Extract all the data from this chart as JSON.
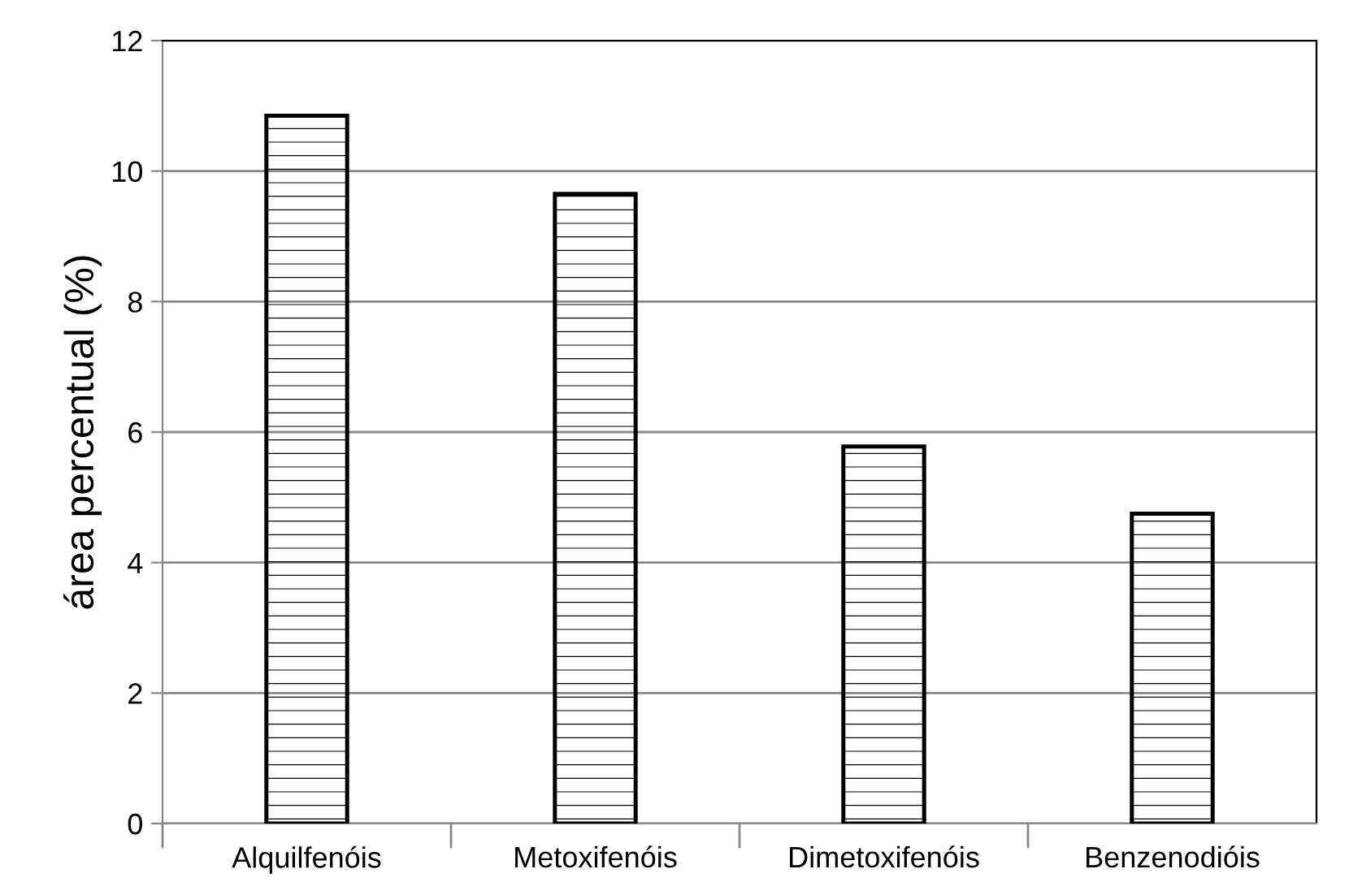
{
  "chart_data": {
    "type": "bar",
    "ylabel": "área percentual (%)",
    "categories": [
      "Alquilfenóis",
      "Metoxifenóis",
      "Dimetoxifenóis",
      "Benzenodióis"
    ],
    "values": [
      10.85,
      9.65,
      5.78,
      4.75
    ],
    "color": "#000000",
    "ylim": [
      0,
      12
    ],
    "yticks": [
      0,
      2,
      4,
      6,
      8,
      10,
      12
    ],
    "grid": "y"
  }
}
